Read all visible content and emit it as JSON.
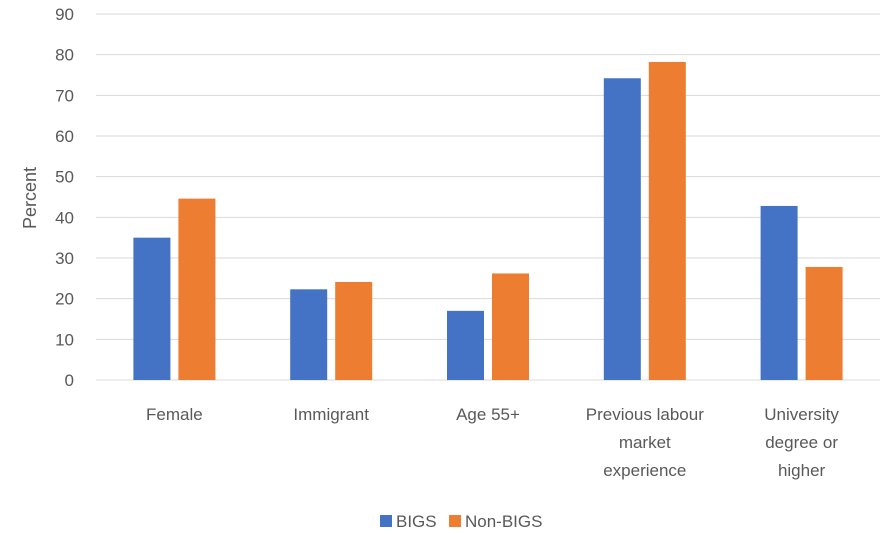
{
  "chart_data": {
    "type": "bar",
    "categories": [
      [
        "Female"
      ],
      [
        "Immigrant"
      ],
      [
        "Age 55+"
      ],
      [
        "Previous labour",
        "market",
        "experience"
      ],
      [
        "University",
        "degree or",
        "higher"
      ]
    ],
    "series": [
      {
        "name": "BIGS",
        "color": "#4472C4",
        "values": [
          35,
          22.3,
          17,
          74.2,
          42.8
        ]
      },
      {
        "name": "Non-BIGS",
        "color": "#ED7D31",
        "values": [
          44.6,
          24.1,
          26.2,
          78.2,
          27.8
        ]
      }
    ],
    "ylabel": "Percent",
    "ylim": [
      0,
      90
    ],
    "yticks": [
      0,
      10,
      20,
      30,
      40,
      50,
      60,
      70,
      80,
      90
    ],
    "grid": true,
    "gridColor": "#D9D9D9",
    "legend_position": "bottom"
  }
}
